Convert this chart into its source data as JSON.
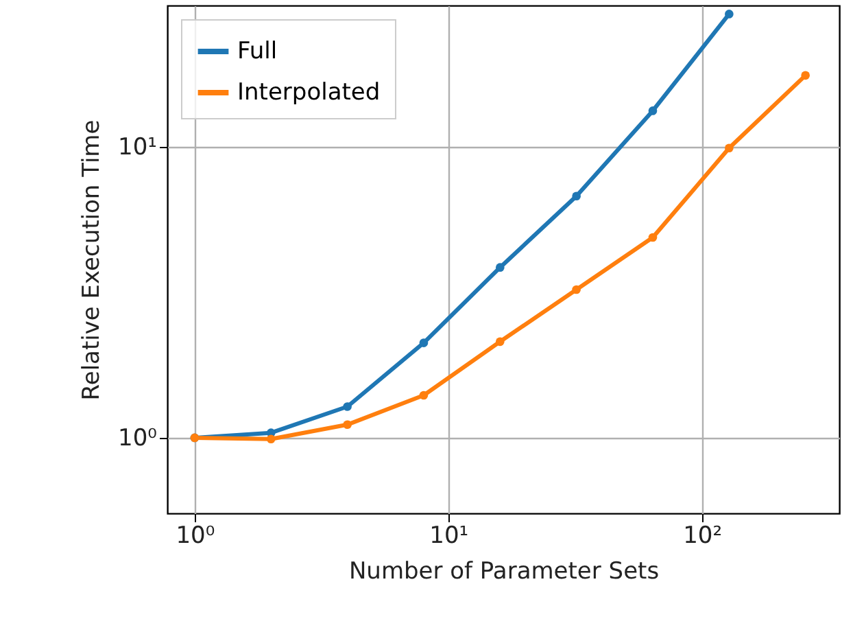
{
  "chart_data": {
    "type": "line",
    "xlabel": "Number of Parameter Sets",
    "ylabel": "Relative Execution Time",
    "x": [
      1,
      2,
      4,
      8,
      16,
      32,
      64,
      128,
      256
    ],
    "series": [
      {
        "name": "Full",
        "color": "#1f77b4",
        "values": [
          1,
          1.04,
          1.28,
          2.12,
          3.85,
          6.77,
          13.3,
          28.6,
          null
        ]
      },
      {
        "name": "Interpolated",
        "color": "#ff7f0e",
        "values": [
          1,
          0.99,
          1.11,
          1.4,
          2.14,
          3.23,
          4.88,
          9.9,
          17.6
        ]
      }
    ],
    "log": "xy",
    "xlim": [
      0.78,
      348
    ],
    "ylim": [
      0.55,
      30.6
    ],
    "xticks": [
      {
        "value": 1,
        "label": "10⁰"
      },
      {
        "value": 10,
        "label": "10¹"
      },
      {
        "value": 100,
        "label": "10²"
      }
    ],
    "yticks": [
      {
        "value": 1,
        "label": "10⁰"
      },
      {
        "value": 10,
        "label": "10¹"
      }
    ],
    "grid": true,
    "legend": "top left",
    "marker": "circle",
    "line_style": "solid"
  }
}
